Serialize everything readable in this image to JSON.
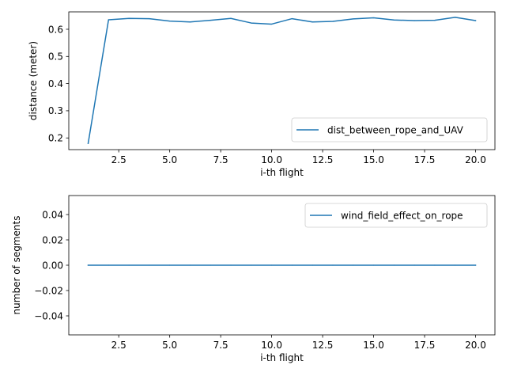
{
  "chart_data": [
    {
      "type": "line",
      "xlabel": "i-th flight",
      "ylabel": "distance (meter)",
      "xlim": [
        0.05,
        20.95
      ],
      "ylim": [
        0.157,
        0.664
      ],
      "x_ticks": [
        2.5,
        5.0,
        7.5,
        10.0,
        12.5,
        15.0,
        17.5,
        20.0
      ],
      "x_tick_labels": [
        "2.5",
        "5.0",
        "7.5",
        "10.0",
        "12.5",
        "15.0",
        "17.5",
        "20.0"
      ],
      "y_ticks": [
        0.2,
        0.3,
        0.4,
        0.5,
        0.6
      ],
      "y_tick_labels": [
        "0.2",
        "0.3",
        "0.4",
        "0.5",
        "0.6"
      ],
      "legend_position": "lower-right",
      "series": [
        {
          "name": "dist_between_rope_and_UAV",
          "color": "#1f77b4",
          "x": [
            1,
            2,
            3,
            4,
            5,
            6,
            7,
            8,
            9,
            10,
            11,
            12,
            13,
            14,
            15,
            16,
            17,
            18,
            19,
            20
          ],
          "y": [
            0.18,
            0.635,
            0.64,
            0.639,
            0.63,
            0.627,
            0.633,
            0.64,
            0.623,
            0.619,
            0.639,
            0.627,
            0.629,
            0.638,
            0.642,
            0.634,
            0.632,
            0.633,
            0.644,
            0.632
          ]
        }
      ]
    },
    {
      "type": "line",
      "xlabel": "i-th flight",
      "ylabel": "number of segments",
      "xlim": [
        0.05,
        20.95
      ],
      "ylim": [
        -0.055,
        0.055
      ],
      "x_ticks": [
        2.5,
        5.0,
        7.5,
        10.0,
        12.5,
        15.0,
        17.5,
        20.0
      ],
      "x_tick_labels": [
        "2.5",
        "5.0",
        "7.5",
        "10.0",
        "12.5",
        "15.0",
        "17.5",
        "20.0"
      ],
      "y_ticks": [
        -0.04,
        -0.02,
        0.0,
        0.02,
        0.04
      ],
      "y_tick_labels": [
        "−0.04",
        "−0.02",
        "0.00",
        "0.02",
        "0.04"
      ],
      "legend_position": "upper-right",
      "series": [
        {
          "name": "wind_field_effect_on_rope",
          "color": "#1f77b4",
          "x": [
            1,
            2,
            3,
            4,
            5,
            6,
            7,
            8,
            9,
            10,
            11,
            12,
            13,
            14,
            15,
            16,
            17,
            18,
            19,
            20
          ],
          "y": [
            0,
            0,
            0,
            0,
            0,
            0,
            0,
            0,
            0,
            0,
            0,
            0,
            0,
            0,
            0,
            0,
            0,
            0,
            0,
            0
          ]
        }
      ]
    }
  ]
}
